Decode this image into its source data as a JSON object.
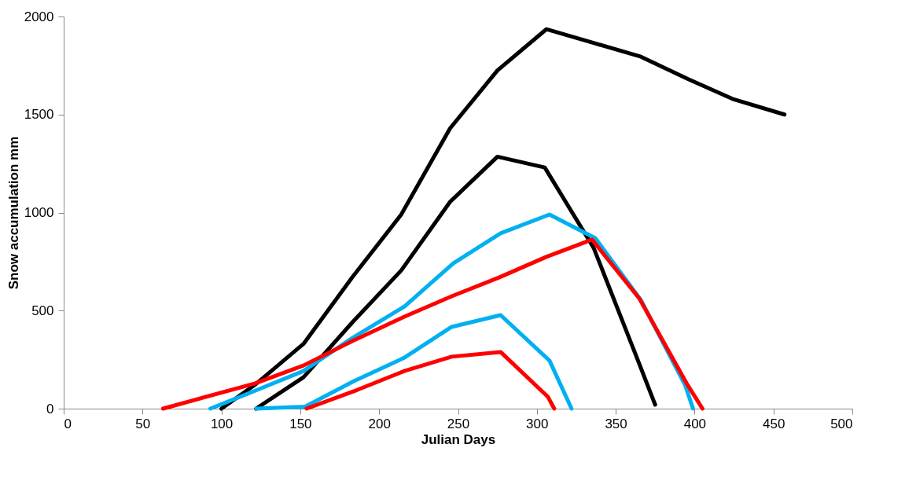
{
  "chart_data": {
    "type": "line",
    "xlabel": "Julian Days",
    "ylabel": "Snow accumulation mm",
    "xlim": [
      0,
      500
    ],
    "xticks": [
      0,
      50,
      100,
      150,
      200,
      250,
      300,
      350,
      400,
      450,
      500
    ],
    "ylim": [
      0,
      2000
    ],
    "yticks": [
      0,
      500,
      1000,
      1500,
      2000
    ],
    "grid": false,
    "legend": false,
    "marker": "none",
    "line_style": "solid",
    "series": [
      {
        "color": "#000000",
        "x": [
          100,
          121,
          152,
          183,
          214,
          245,
          275,
          306,
          336,
          366,
          396,
          424,
          457
        ],
        "values": [
          0,
          120,
          330,
          670,
          990,
          1430,
          1725,
          1935,
          1865,
          1795,
          1680,
          1580,
          1500
        ]
      },
      {
        "color": "#000000",
        "x": [
          122,
          152,
          183,
          214,
          245,
          275,
          305,
          336,
          363,
          375
        ],
        "values": [
          0,
          160,
          440,
          705,
          1055,
          1285,
          1230,
          820,
          268,
          20
        ]
      },
      {
        "color": "#00b0f0",
        "x": [
          93,
          121,
          152,
          183,
          216,
          247,
          277,
          308,
          337,
          366,
          394,
          399
        ],
        "values": [
          0,
          90,
          192,
          360,
          521,
          741,
          894,
          990,
          870,
          553,
          120,
          0
        ]
      },
      {
        "color": "#00b0f0",
        "x": [
          122,
          153,
          184,
          216,
          246,
          277,
          308,
          322
        ],
        "values": [
          0,
          10,
          140,
          260,
          417,
          477,
          245,
          0
        ]
      },
      {
        "color": "#ff0000",
        "x": [
          63,
          121,
          152,
          183,
          216,
          246,
          276,
          306,
          335,
          365,
          395,
          405
        ],
        "values": [
          0,
          128,
          220,
          345,
          469,
          573,
          669,
          774,
          862,
          561,
          128,
          0
        ]
      },
      {
        "color": "#ff0000",
        "x": [
          154,
          186,
          216,
          246,
          277,
          307,
          311
        ],
        "values": [
          0,
          95,
          192,
          265,
          289,
          60,
          0
        ]
      }
    ]
  }
}
